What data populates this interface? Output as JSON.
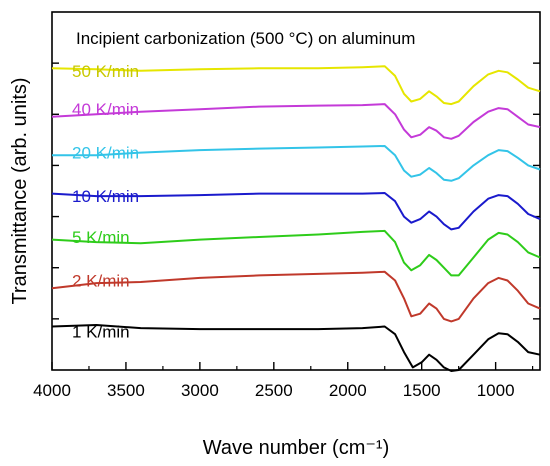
{
  "chart_data": {
    "type": "line",
    "title": "Incipient carbonization (500 °C) on aluminum",
    "xlabel": "Wave number (cm⁻¹)",
    "ylabel": "Transmittance (arb. units)",
    "xlim": [
      4000,
      700
    ],
    "x_reversed": true,
    "xticks": [
      4000,
      3500,
      3000,
      2500,
      2000,
      1500,
      1000
    ],
    "ylim": [
      0,
      7
    ],
    "y_tick_labels": false,
    "grid": false,
    "legend": "inline-labels-left",
    "series": [
      {
        "name": "1 K/min",
        "color": "#000000",
        "offset": 0.75,
        "points": [
          [
            4000,
            0.85
          ],
          [
            3700,
            0.88
          ],
          [
            3400,
            0.82
          ],
          [
            3000,
            0.8
          ],
          [
            2600,
            0.8
          ],
          [
            2200,
            0.8
          ],
          [
            1900,
            0.82
          ],
          [
            1750,
            0.85
          ],
          [
            1680,
            0.7
          ],
          [
            1620,
            0.35
          ],
          [
            1560,
            0.05
          ],
          [
            1500,
            0.15
          ],
          [
            1450,
            0.3
          ],
          [
            1400,
            0.2
          ],
          [
            1350,
            0.05
          ],
          [
            1300,
            -0.02
          ],
          [
            1250,
            0.0
          ],
          [
            1150,
            0.3
          ],
          [
            1050,
            0.6
          ],
          [
            980,
            0.72
          ],
          [
            920,
            0.7
          ],
          [
            850,
            0.55
          ],
          [
            780,
            0.35
          ],
          [
            700,
            0.3
          ]
        ]
      },
      {
        "name": "2 K/min",
        "color": "#c0392b",
        "offset": 1.75,
        "points": [
          [
            4000,
            1.6
          ],
          [
            3700,
            1.7
          ],
          [
            3400,
            1.72
          ],
          [
            3000,
            1.8
          ],
          [
            2600,
            1.85
          ],
          [
            2200,
            1.88
          ],
          [
            1900,
            1.9
          ],
          [
            1750,
            1.92
          ],
          [
            1680,
            1.75
          ],
          [
            1620,
            1.4
          ],
          [
            1570,
            1.05
          ],
          [
            1510,
            1.1
          ],
          [
            1450,
            1.3
          ],
          [
            1400,
            1.2
          ],
          [
            1350,
            1.0
          ],
          [
            1300,
            0.95
          ],
          [
            1250,
            1.0
          ],
          [
            1150,
            1.4
          ],
          [
            1050,
            1.7
          ],
          [
            980,
            1.8
          ],
          [
            920,
            1.75
          ],
          [
            850,
            1.55
          ],
          [
            780,
            1.3
          ],
          [
            700,
            1.2
          ]
        ]
      },
      {
        "name": "5 K/min",
        "color": "#2ecc1a",
        "offset": 2.6,
        "points": [
          [
            4000,
            2.55
          ],
          [
            3700,
            2.5
          ],
          [
            3400,
            2.48
          ],
          [
            3000,
            2.55
          ],
          [
            2600,
            2.6
          ],
          [
            2200,
            2.65
          ],
          [
            1900,
            2.7
          ],
          [
            1750,
            2.72
          ],
          [
            1680,
            2.5
          ],
          [
            1620,
            2.1
          ],
          [
            1570,
            1.95
          ],
          [
            1510,
            2.05
          ],
          [
            1450,
            2.25
          ],
          [
            1400,
            2.15
          ],
          [
            1350,
            2.0
          ],
          [
            1300,
            1.85
          ],
          [
            1250,
            1.85
          ],
          [
            1150,
            2.2
          ],
          [
            1050,
            2.55
          ],
          [
            980,
            2.68
          ],
          [
            920,
            2.65
          ],
          [
            850,
            2.5
          ],
          [
            780,
            2.3
          ],
          [
            700,
            2.2
          ]
        ]
      },
      {
        "name": "10 K/min",
        "color": "#1a1acc",
        "offset": 3.4,
        "points": [
          [
            4000,
            3.45
          ],
          [
            3700,
            3.4
          ],
          [
            3400,
            3.4
          ],
          [
            3000,
            3.42
          ],
          [
            2600,
            3.45
          ],
          [
            2200,
            3.45
          ],
          [
            1900,
            3.45
          ],
          [
            1750,
            3.46
          ],
          [
            1680,
            3.3
          ],
          [
            1620,
            3.0
          ],
          [
            1570,
            2.88
          ],
          [
            1510,
            2.95
          ],
          [
            1450,
            3.1
          ],
          [
            1400,
            3.0
          ],
          [
            1350,
            2.85
          ],
          [
            1300,
            2.75
          ],
          [
            1250,
            2.78
          ],
          [
            1150,
            3.1
          ],
          [
            1050,
            3.35
          ],
          [
            980,
            3.42
          ],
          [
            920,
            3.4
          ],
          [
            850,
            3.25
          ],
          [
            780,
            3.05
          ],
          [
            700,
            2.95
          ]
        ]
      },
      {
        "name": "20 K/min",
        "color": "#33c4e8",
        "offset": 4.25,
        "points": [
          [
            4000,
            4.2
          ],
          [
            3700,
            4.2
          ],
          [
            3400,
            4.25
          ],
          [
            3000,
            4.3
          ],
          [
            2600,
            4.33
          ],
          [
            2200,
            4.35
          ],
          [
            1900,
            4.37
          ],
          [
            1750,
            4.38
          ],
          [
            1680,
            4.2
          ],
          [
            1620,
            3.9
          ],
          [
            1570,
            3.78
          ],
          [
            1510,
            3.82
          ],
          [
            1450,
            3.95
          ],
          [
            1400,
            3.85
          ],
          [
            1350,
            3.72
          ],
          [
            1300,
            3.7
          ],
          [
            1250,
            3.75
          ],
          [
            1150,
            4.0
          ],
          [
            1050,
            4.2
          ],
          [
            980,
            4.3
          ],
          [
            920,
            4.28
          ],
          [
            850,
            4.15
          ],
          [
            780,
            4.0
          ],
          [
            700,
            3.92
          ]
        ]
      },
      {
        "name": "40 K/min",
        "color": "#c43ad8",
        "offset": 5.1,
        "points": [
          [
            4000,
            4.95
          ],
          [
            3700,
            5.0
          ],
          [
            3400,
            5.05
          ],
          [
            3000,
            5.1
          ],
          [
            2600,
            5.15
          ],
          [
            2200,
            5.17
          ],
          [
            1900,
            5.18
          ],
          [
            1750,
            5.2
          ],
          [
            1680,
            5.0
          ],
          [
            1620,
            4.7
          ],
          [
            1570,
            4.55
          ],
          [
            1510,
            4.6
          ],
          [
            1450,
            4.75
          ],
          [
            1400,
            4.68
          ],
          [
            1350,
            4.55
          ],
          [
            1300,
            4.52
          ],
          [
            1250,
            4.58
          ],
          [
            1150,
            4.85
          ],
          [
            1050,
            5.05
          ],
          [
            980,
            5.12
          ],
          [
            920,
            5.1
          ],
          [
            850,
            4.95
          ],
          [
            780,
            4.8
          ],
          [
            700,
            4.75
          ]
        ]
      },
      {
        "name": "50 K/min",
        "color": "#e6e600",
        "offset": 5.85,
        "points": [
          [
            4000,
            5.9
          ],
          [
            3700,
            5.88
          ],
          [
            3400,
            5.85
          ],
          [
            3000,
            5.88
          ],
          [
            2600,
            5.9
          ],
          [
            2200,
            5.9
          ],
          [
            1900,
            5.92
          ],
          [
            1750,
            5.94
          ],
          [
            1680,
            5.75
          ],
          [
            1620,
            5.4
          ],
          [
            1570,
            5.25
          ],
          [
            1510,
            5.3
          ],
          [
            1450,
            5.45
          ],
          [
            1400,
            5.35
          ],
          [
            1350,
            5.22
          ],
          [
            1300,
            5.2
          ],
          [
            1250,
            5.25
          ],
          [
            1150,
            5.55
          ],
          [
            1050,
            5.78
          ],
          [
            980,
            5.85
          ],
          [
            920,
            5.82
          ],
          [
            850,
            5.68
          ],
          [
            780,
            5.52
          ],
          [
            700,
            5.45
          ]
        ]
      }
    ]
  }
}
